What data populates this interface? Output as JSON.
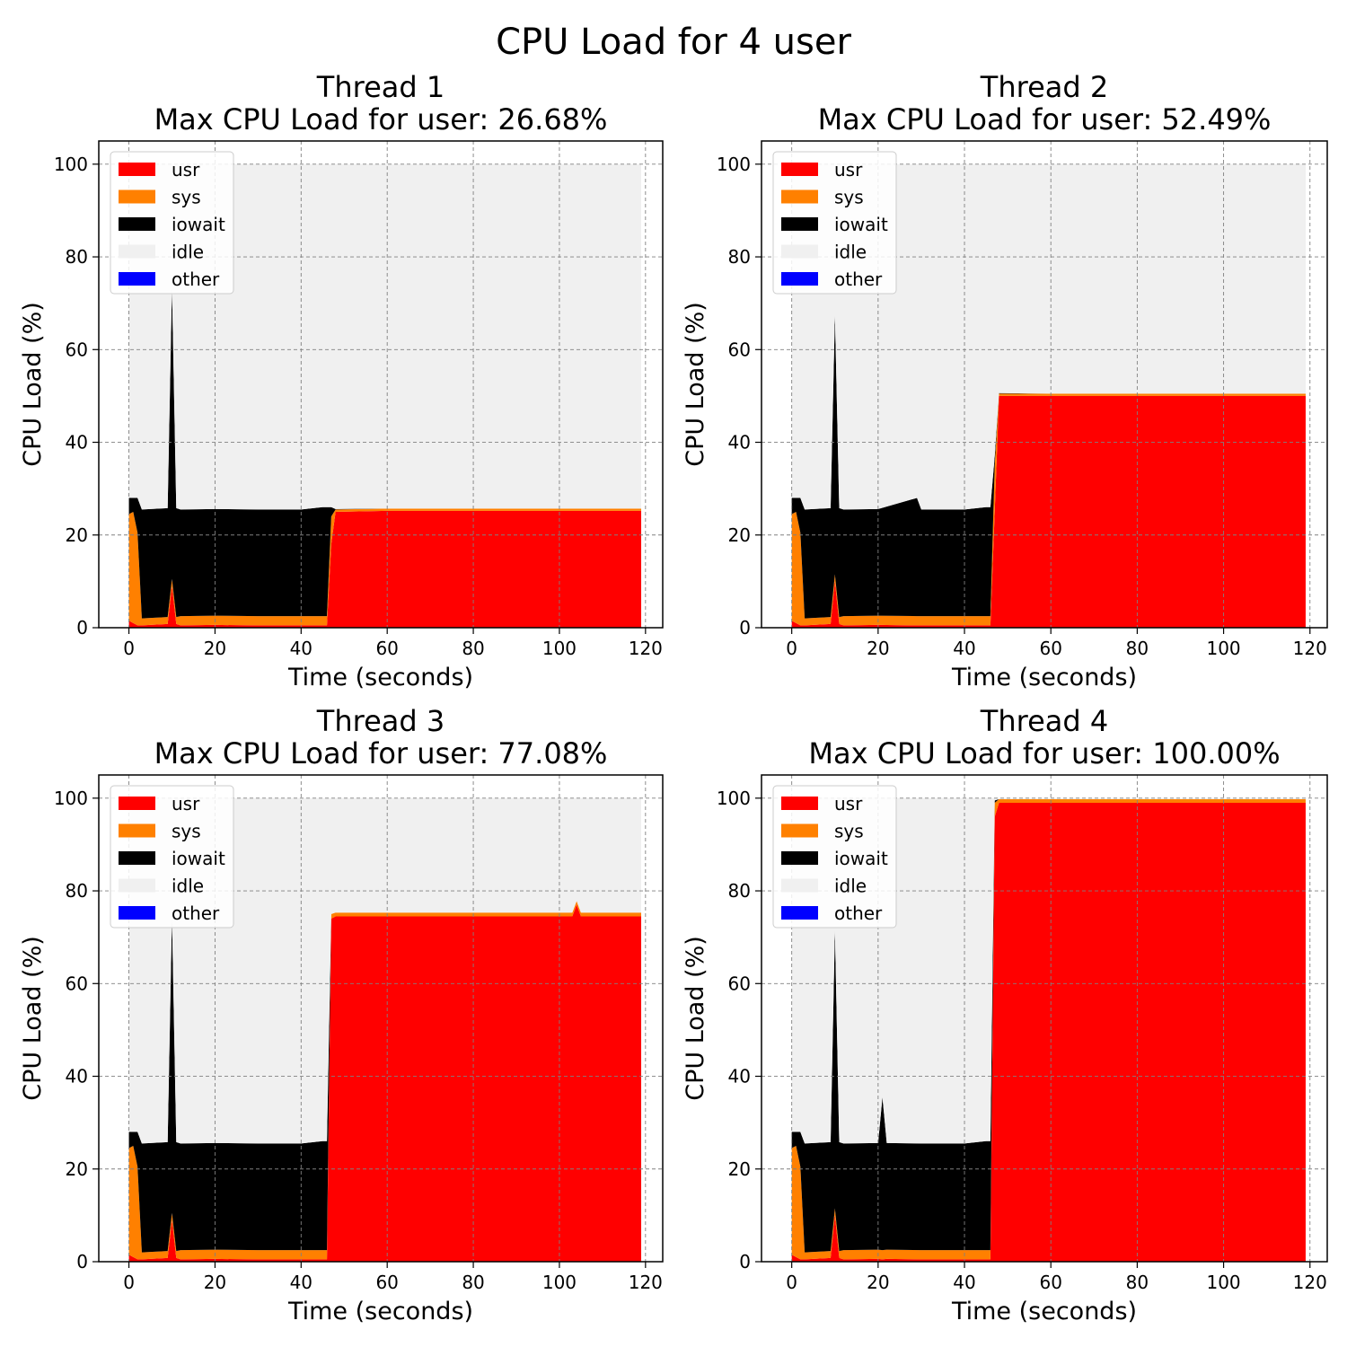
{
  "figure": {
    "title": "CPU Load for 4 user"
  },
  "colors": {
    "usr": "#ff0000",
    "sys": "#ff8000",
    "iowait": "#000000",
    "idle": "#f0f0f0",
    "other": "#0000ff",
    "grid": "#808080"
  },
  "chart_data": [
    {
      "type": "area",
      "title": "Thread 1",
      "subtitle": "Max CPU Load for user: 26.68%",
      "xlabel": "Time (seconds)",
      "ylabel": "CPU Load (%)",
      "xlim": [
        -7,
        124
      ],
      "ylim": [
        0,
        105
      ],
      "xticks": [
        0,
        20,
        40,
        60,
        80,
        100,
        120
      ],
      "yticks": [
        0,
        20,
        40,
        60,
        80,
        100
      ],
      "grid": true,
      "legend": {
        "placement": "top-left",
        "entries": [
          "usr",
          "sys",
          "iowait",
          "idle",
          "other"
        ]
      },
      "series_order": [
        "usr",
        "sys",
        "iowait",
        "idle",
        "other"
      ],
      "x": [
        0,
        1,
        2,
        3,
        9,
        10,
        11,
        12,
        20,
        30,
        40,
        45,
        46,
        47,
        48,
        60,
        80,
        100,
        119
      ],
      "series": [
        {
          "name": "usr",
          "values": [
            1.5,
            1.0,
            0.5,
            0.5,
            0.8,
            9.0,
            0.8,
            0.5,
            0.6,
            0.5,
            0.5,
            0.5,
            0.5,
            18.0,
            25.0,
            25.2,
            25.2,
            25.2,
            25.2
          ]
        },
        {
          "name": "sys",
          "values": [
            23.0,
            24.0,
            20.0,
            1.5,
            1.5,
            1.5,
            1.5,
            2.0,
            2.0,
            2.0,
            2.0,
            2.0,
            2.0,
            6.0,
            0.5,
            0.5,
            0.5,
            0.5,
            0.5
          ]
        },
        {
          "name": "iowait",
          "values": [
            3.5,
            3.0,
            7.5,
            23.5,
            23.5,
            63.0,
            23.5,
            23.0,
            23.0,
            23.0,
            23.0,
            23.5,
            23.5,
            2.0,
            0.1,
            0.0,
            0.0,
            0.0,
            0.0
          ]
        },
        {
          "name": "idle",
          "values": [
            72.0,
            72.0,
            72.0,
            74.5,
            74.2,
            26.5,
            74.2,
            74.5,
            74.4,
            74.5,
            74.5,
            74.0,
            74.0,
            74.0,
            74.4,
            74.3,
            74.3,
            74.3,
            74.3
          ]
        },
        {
          "name": "other",
          "values": [
            0,
            0,
            0,
            0,
            0,
            0,
            0,
            0,
            0,
            0,
            0,
            0,
            0,
            0,
            0,
            0,
            0,
            0,
            0
          ]
        }
      ]
    },
    {
      "type": "area",
      "title": "Thread 2",
      "subtitle": "Max CPU Load for user: 52.49%",
      "xlabel": "Time (seconds)",
      "ylabel": "CPU Load (%)",
      "xlim": [
        -7,
        124
      ],
      "ylim": [
        0,
        105
      ],
      "xticks": [
        0,
        20,
        40,
        60,
        80,
        100,
        120
      ],
      "yticks": [
        0,
        20,
        40,
        60,
        80,
        100
      ],
      "grid": true,
      "legend": {
        "placement": "top-left",
        "entries": [
          "usr",
          "sys",
          "iowait",
          "idle",
          "other"
        ]
      },
      "series_order": [
        "usr",
        "sys",
        "iowait",
        "idle",
        "other"
      ],
      "x": [
        0,
        1,
        2,
        3,
        9,
        10,
        11,
        12,
        20,
        29,
        30,
        31,
        40,
        45,
        46,
        47,
        48,
        60,
        80,
        100,
        119
      ],
      "series": [
        {
          "name": "usr",
          "values": [
            1.5,
            1.0,
            0.5,
            0.5,
            0.8,
            10.0,
            0.8,
            0.5,
            0.6,
            0.5,
            0.5,
            0.5,
            0.5,
            0.5,
            0.5,
            25.0,
            50.0,
            50.0,
            50.0,
            50.0,
            50.0
          ]
        },
        {
          "name": "sys",
          "values": [
            23.0,
            24.0,
            20.0,
            1.5,
            1.5,
            1.5,
            1.5,
            2.0,
            2.0,
            2.0,
            2.0,
            2.0,
            2.0,
            2.0,
            2.0,
            10.0,
            0.5,
            0.5,
            0.5,
            0.5,
            0.5
          ]
        },
        {
          "name": "iowait",
          "values": [
            3.5,
            3.0,
            7.5,
            23.5,
            23.5,
            56.0,
            23.5,
            23.0,
            23.0,
            25.5,
            23.0,
            23.0,
            23.0,
            23.5,
            23.5,
            2.0,
            0.1,
            0.0,
            0.0,
            0.0,
            0.0
          ]
        },
        {
          "name": "idle",
          "values": [
            72.0,
            72.0,
            72.0,
            74.5,
            74.2,
            32.5,
            74.2,
            74.5,
            74.4,
            72.0,
            74.5,
            74.5,
            74.5,
            74.0,
            74.0,
            63.0,
            49.4,
            49.5,
            49.5,
            49.5,
            49.5
          ]
        },
        {
          "name": "other",
          "values": [
            0,
            0,
            0,
            0,
            0,
            0,
            0,
            0,
            0,
            0,
            0,
            0,
            0,
            0,
            0,
            0,
            0,
            0,
            0,
            0,
            0
          ]
        }
      ]
    },
    {
      "type": "area",
      "title": "Thread 3",
      "subtitle": "Max CPU Load for user: 77.08%",
      "xlabel": "Time (seconds)",
      "ylabel": "CPU Load (%)",
      "xlim": [
        -7,
        124
      ],
      "ylim": [
        0,
        105
      ],
      "xticks": [
        0,
        20,
        40,
        60,
        80,
        100,
        120
      ],
      "yticks": [
        0,
        20,
        40,
        60,
        80,
        100
      ],
      "grid": true,
      "legend": {
        "placement": "top-left",
        "entries": [
          "usr",
          "sys",
          "iowait",
          "idle",
          "other"
        ]
      },
      "series_order": [
        "usr",
        "sys",
        "iowait",
        "idle",
        "other"
      ],
      "x": [
        0,
        1,
        2,
        3,
        9,
        10,
        11,
        12,
        20,
        30,
        40,
        45,
        46,
        47,
        48,
        60,
        80,
        100,
        103,
        104,
        105,
        119
      ],
      "series": [
        {
          "name": "usr",
          "values": [
            1.5,
            1.0,
            0.5,
            0.5,
            0.8,
            9.0,
            0.8,
            0.5,
            0.6,
            0.5,
            0.5,
            0.5,
            0.5,
            74.0,
            74.5,
            74.5,
            74.5,
            74.5,
            74.5,
            77.0,
            74.5,
            74.5
          ]
        },
        {
          "name": "sys",
          "values": [
            23.0,
            24.0,
            20.0,
            1.5,
            1.5,
            1.5,
            1.5,
            2.0,
            2.0,
            2.0,
            2.0,
            2.0,
            2.0,
            1.0,
            0.8,
            0.8,
            0.8,
            0.8,
            0.8,
            0.8,
            0.8,
            0.8
          ]
        },
        {
          "name": "iowait",
          "values": [
            3.5,
            3.0,
            7.5,
            23.5,
            23.5,
            64.0,
            23.5,
            23.0,
            23.0,
            23.0,
            23.0,
            23.5,
            23.5,
            0.0,
            0.0,
            0.0,
            0.0,
            0.0,
            0.0,
            0.0,
            0.0,
            0.0
          ]
        },
        {
          "name": "idle",
          "values": [
            72.0,
            72.0,
            72.0,
            74.5,
            74.2,
            25.5,
            74.2,
            74.5,
            74.4,
            74.5,
            74.5,
            74.0,
            74.0,
            25.0,
            24.7,
            24.7,
            24.7,
            24.7,
            24.7,
            22.2,
            24.7,
            24.7
          ]
        },
        {
          "name": "other",
          "values": [
            0,
            0,
            0,
            0,
            0,
            0,
            0,
            0,
            0,
            0,
            0,
            0,
            0,
            0,
            0,
            0,
            0,
            0,
            0,
            0,
            0,
            0
          ]
        }
      ]
    },
    {
      "type": "area",
      "title": "Thread 4",
      "subtitle": "Max CPU Load for user: 100.00%",
      "xlabel": "Time (seconds)",
      "ylabel": "CPU Load (%)",
      "xlim": [
        -7,
        124
      ],
      "ylim": [
        0,
        105
      ],
      "xticks": [
        0,
        20,
        40,
        60,
        80,
        100,
        120
      ],
      "yticks": [
        0,
        20,
        40,
        60,
        80,
        100
      ],
      "grid": true,
      "legend": {
        "placement": "top-left",
        "entries": [
          "usr",
          "sys",
          "iowait",
          "idle",
          "other"
        ]
      },
      "series_order": [
        "usr",
        "sys",
        "iowait",
        "idle",
        "other"
      ],
      "x": [
        0,
        1,
        2,
        3,
        9,
        10,
        11,
        12,
        20,
        21,
        22,
        30,
        40,
        45,
        46,
        47,
        48,
        60,
        80,
        100,
        119
      ],
      "series": [
        {
          "name": "usr",
          "values": [
            1.5,
            1.0,
            0.5,
            0.5,
            0.8,
            10.0,
            0.8,
            0.5,
            0.6,
            0.5,
            0.6,
            0.5,
            0.5,
            0.5,
            0.5,
            96.0,
            99.0,
            99.0,
            99.0,
            99.0,
            99.0
          ]
        },
        {
          "name": "sys",
          "values": [
            23.0,
            24.0,
            20.0,
            1.5,
            1.5,
            1.5,
            1.5,
            2.0,
            2.0,
            2.0,
            2.0,
            2.0,
            2.0,
            2.0,
            2.0,
            3.0,
            0.8,
            0.8,
            0.8,
            0.8,
            0.8
          ]
        },
        {
          "name": "iowait",
          "values": [
            3.5,
            3.0,
            7.5,
            23.5,
            23.5,
            60.0,
            23.5,
            23.0,
            23.0,
            33.0,
            23.0,
            23.0,
            23.0,
            23.5,
            23.5,
            0.5,
            0.0,
            0.0,
            0.0,
            0.0,
            0.0
          ]
        },
        {
          "name": "idle",
          "values": [
            72.0,
            72.0,
            72.0,
            74.5,
            74.2,
            28.5,
            74.2,
            74.5,
            74.4,
            64.5,
            74.4,
            74.5,
            74.5,
            74.0,
            74.0,
            0.5,
            0.2,
            0.2,
            0.2,
            0.2,
            0.2
          ]
        },
        {
          "name": "other",
          "values": [
            0,
            0,
            0,
            0,
            0,
            0,
            0,
            0,
            0,
            0,
            0,
            0,
            0,
            0,
            0,
            0,
            0,
            0,
            0,
            0,
            0
          ]
        }
      ]
    }
  ]
}
